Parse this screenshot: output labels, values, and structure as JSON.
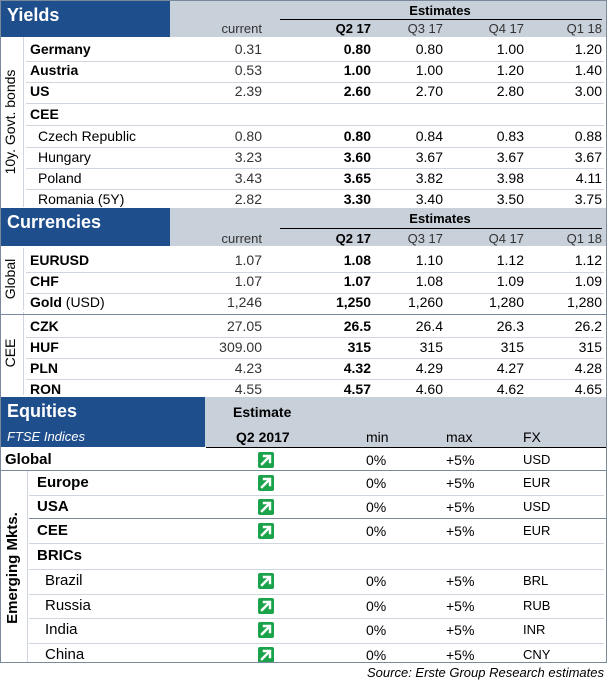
{
  "yields": {
    "title": "Yields",
    "estimates_label": "Estimates",
    "headers": [
      "current",
      "Q2 17",
      "Q3 17",
      "Q4 17",
      "Q1 18"
    ],
    "side_label": "10y. Govt. bonds",
    "rows": [
      {
        "name": "Germany",
        "values": [
          "0.31",
          "0.80",
          "0.80",
          "1.00",
          "1.20"
        ]
      },
      {
        "name": "Austria",
        "values": [
          "0.53",
          "1.00",
          "1.00",
          "1.20",
          "1.40"
        ]
      },
      {
        "name": "US",
        "values": [
          "2.39",
          "2.60",
          "2.70",
          "2.80",
          "3.00"
        ]
      }
    ],
    "cee_label": "CEE",
    "cee_rows": [
      {
        "name": "Czech Republic",
        "values": [
          "0.80",
          "0.80",
          "0.84",
          "0.83",
          "0.88"
        ]
      },
      {
        "name": "Hungary",
        "values": [
          "3.23",
          "3.60",
          "3.67",
          "3.67",
          "3.67"
        ]
      },
      {
        "name": "Poland",
        "values": [
          "3.43",
          "3.65",
          "3.82",
          "3.98",
          "4.11"
        ]
      },
      {
        "name": "Romania (5Y)",
        "values": [
          "2.82",
          "3.30",
          "3.40",
          "3.50",
          "3.75"
        ]
      }
    ]
  },
  "currencies": {
    "title": "Currencies",
    "estimates_label": "Estimates",
    "headers": [
      "current",
      "Q2 17",
      "Q3 17",
      "Q4 17",
      "Q1 18"
    ],
    "global_label": "Global",
    "global_rows": [
      {
        "name": "EURUSD",
        "values": [
          "1.07",
          "1.08",
          "1.10",
          "1.12",
          "1.12"
        ]
      },
      {
        "name": "CHF",
        "values": [
          "1.07",
          "1.07",
          "1.08",
          "1.09",
          "1.09"
        ]
      },
      {
        "name": "Gold",
        "suffix": " (USD)",
        "values": [
          "1,246",
          "1,250",
          "1,260",
          "1,280",
          "1,280"
        ]
      }
    ],
    "cee_label": "CEE",
    "cee_rows": [
      {
        "name": "CZK",
        "values": [
          "27.05",
          "26.5",
          "26.4",
          "26.3",
          "26.2"
        ]
      },
      {
        "name": "HUF",
        "values": [
          "309.00",
          "315",
          "315",
          "315",
          "315"
        ]
      },
      {
        "name": "PLN",
        "values": [
          "4.23",
          "4.32",
          "4.29",
          "4.27",
          "4.28"
        ]
      },
      {
        "name": "RON",
        "values": [
          "4.55",
          "4.57",
          "4.60",
          "4.62",
          "4.65"
        ]
      }
    ]
  },
  "equities": {
    "title": "Equities",
    "subtitle": "FTSE Indices",
    "estimate_label": "Estimate",
    "q_label": "Q2 2017",
    "min_label": "min",
    "max_label": "max",
    "fx_label": "FX",
    "global_row": {
      "name": "Global",
      "min": "0%",
      "max": "+5%",
      "fx": "USD"
    },
    "side_label": "Emerging Mkts.",
    "dev_rows": [
      {
        "name": "Europe",
        "min": "0%",
        "max": "+5%",
        "fx": "EUR"
      },
      {
        "name": "USA",
        "min": "0%",
        "max": "+5%",
        "fx": "USD"
      }
    ],
    "cee_row": {
      "name": "CEE",
      "min": "0%",
      "max": "+5%",
      "fx": "EUR"
    },
    "brics_label": "BRICs",
    "brics_rows": [
      {
        "name": "Brazil",
        "min": "0%",
        "max": "+5%",
        "fx": "BRL"
      },
      {
        "name": "Russia",
        "min": "0%",
        "max": "+5%",
        "fx": "RUB"
      },
      {
        "name": "India",
        "min": "0%",
        "max": "+5%",
        "fx": "INR"
      },
      {
        "name": "China",
        "min": "0%",
        "max": "+5%",
        "fx": "CNY"
      }
    ],
    "trend_icon": "up-right-arrow-icon"
  },
  "source": "Source: Erste Group Research estimates",
  "colors": {
    "navy": "#1f4e8c",
    "header_grey": "#c8d0da",
    "arrow_green": "#1aa34a"
  }
}
